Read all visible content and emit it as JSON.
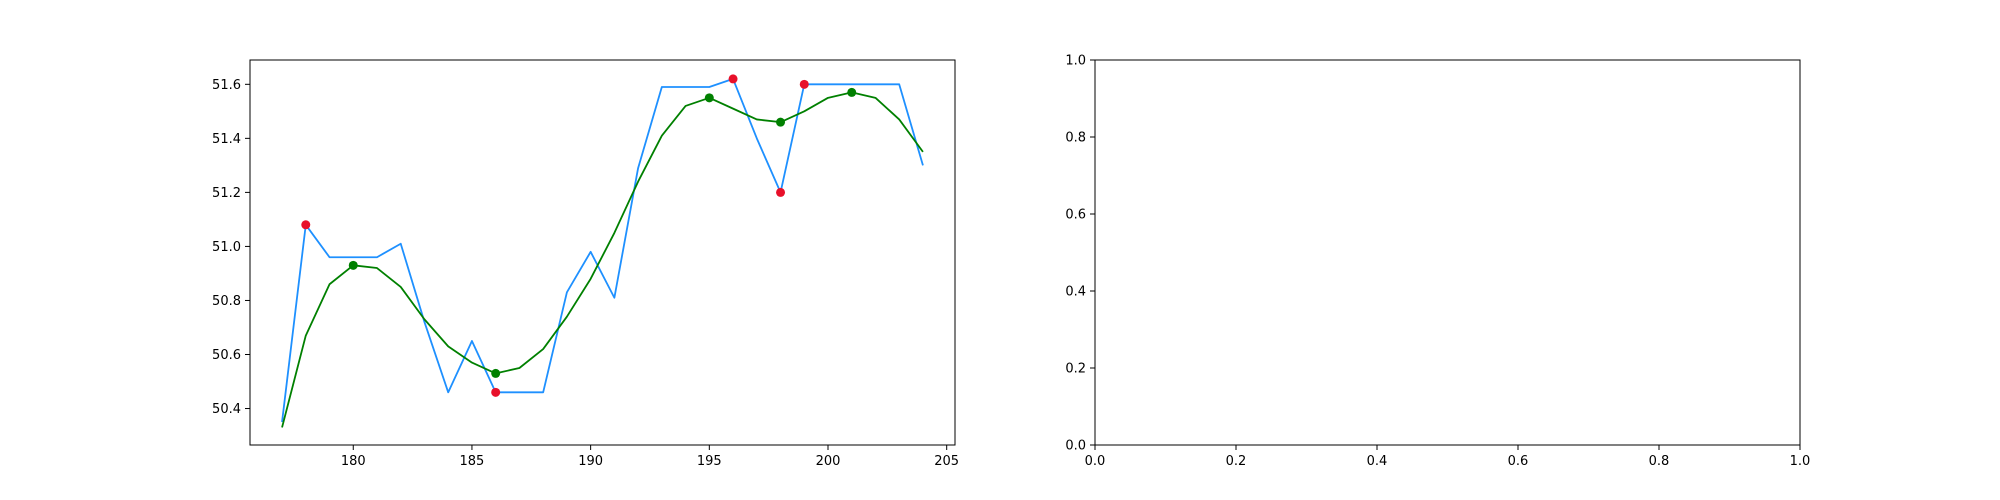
{
  "chart_data": [
    {
      "type": "line",
      "xlim": [
        175.65,
        205.35
      ],
      "ylim": [
        50.265,
        51.69
      ],
      "xticks": [
        180,
        185,
        190,
        195,
        200,
        205
      ],
      "xtick_labels": [
        "180",
        "185",
        "190",
        "195",
        "200",
        "205"
      ],
      "yticks": [
        50.4,
        50.6,
        50.8,
        51.0,
        51.2,
        51.4,
        51.6
      ],
      "ytick_labels": [
        "50.4",
        "50.6",
        "50.8",
        "51.0",
        "51.2",
        "51.4",
        "51.6"
      ],
      "grid": false,
      "series": [
        {
          "kind": "line",
          "color": "#1e90ff",
          "x": [
            177,
            178,
            179,
            180,
            181,
            182,
            183,
            184,
            185,
            186,
            187,
            188,
            189,
            190,
            191,
            192,
            193,
            194,
            195,
            196,
            197,
            198,
            199,
            200,
            201,
            202,
            203,
            204
          ],
          "y": [
            50.35,
            51.08,
            50.96,
            50.96,
            50.96,
            51.01,
            50.72,
            50.46,
            50.65,
            50.46,
            50.46,
            50.46,
            50.83,
            50.98,
            50.81,
            51.29,
            51.59,
            51.59,
            51.59,
            51.62,
            51.4,
            51.2,
            51.6,
            51.6,
            51.6,
            51.6,
            51.6,
            51.3
          ]
        },
        {
          "kind": "line",
          "color": "#008000",
          "x": [
            177,
            178,
            179,
            180,
            181,
            182,
            183,
            184,
            185,
            186,
            187,
            188,
            189,
            190,
            191,
            192,
            193,
            194,
            195,
            196,
            197,
            198,
            199,
            200,
            201,
            202,
            203,
            204
          ],
          "y": [
            50.33,
            50.67,
            50.86,
            50.93,
            50.92,
            50.85,
            50.73,
            50.63,
            50.57,
            50.53,
            50.55,
            50.62,
            50.74,
            50.88,
            51.05,
            51.24,
            51.41,
            51.52,
            51.55,
            51.51,
            51.47,
            51.46,
            51.5,
            51.55,
            51.57,
            51.55,
            51.47,
            51.35
          ]
        },
        {
          "kind": "scatter",
          "color": "#e8102a",
          "x": [
            178,
            186,
            196,
            198,
            199
          ],
          "y": [
            51.08,
            50.46,
            51.62,
            51.2,
            51.6
          ]
        },
        {
          "kind": "scatter",
          "color": "#008000",
          "x": [
            180,
            186,
            195,
            198,
            201
          ],
          "y": [
            50.93,
            50.53,
            51.55,
            51.46,
            51.57
          ]
        }
      ]
    },
    {
      "type": "line",
      "xlim": [
        0.0,
        1.0
      ],
      "ylim": [
        0.0,
        1.0
      ],
      "xticks": [
        0.0,
        0.2,
        0.4,
        0.6,
        0.8,
        1.0
      ],
      "xtick_labels": [
        "0.0",
        "0.2",
        "0.4",
        "0.6",
        "0.8",
        "1.0"
      ],
      "yticks": [
        0.0,
        0.2,
        0.4,
        0.6,
        0.8,
        1.0
      ],
      "ytick_labels": [
        "0.0",
        "0.2",
        "0.4",
        "0.6",
        "0.8",
        "1.0"
      ],
      "grid": false,
      "series": []
    }
  ]
}
